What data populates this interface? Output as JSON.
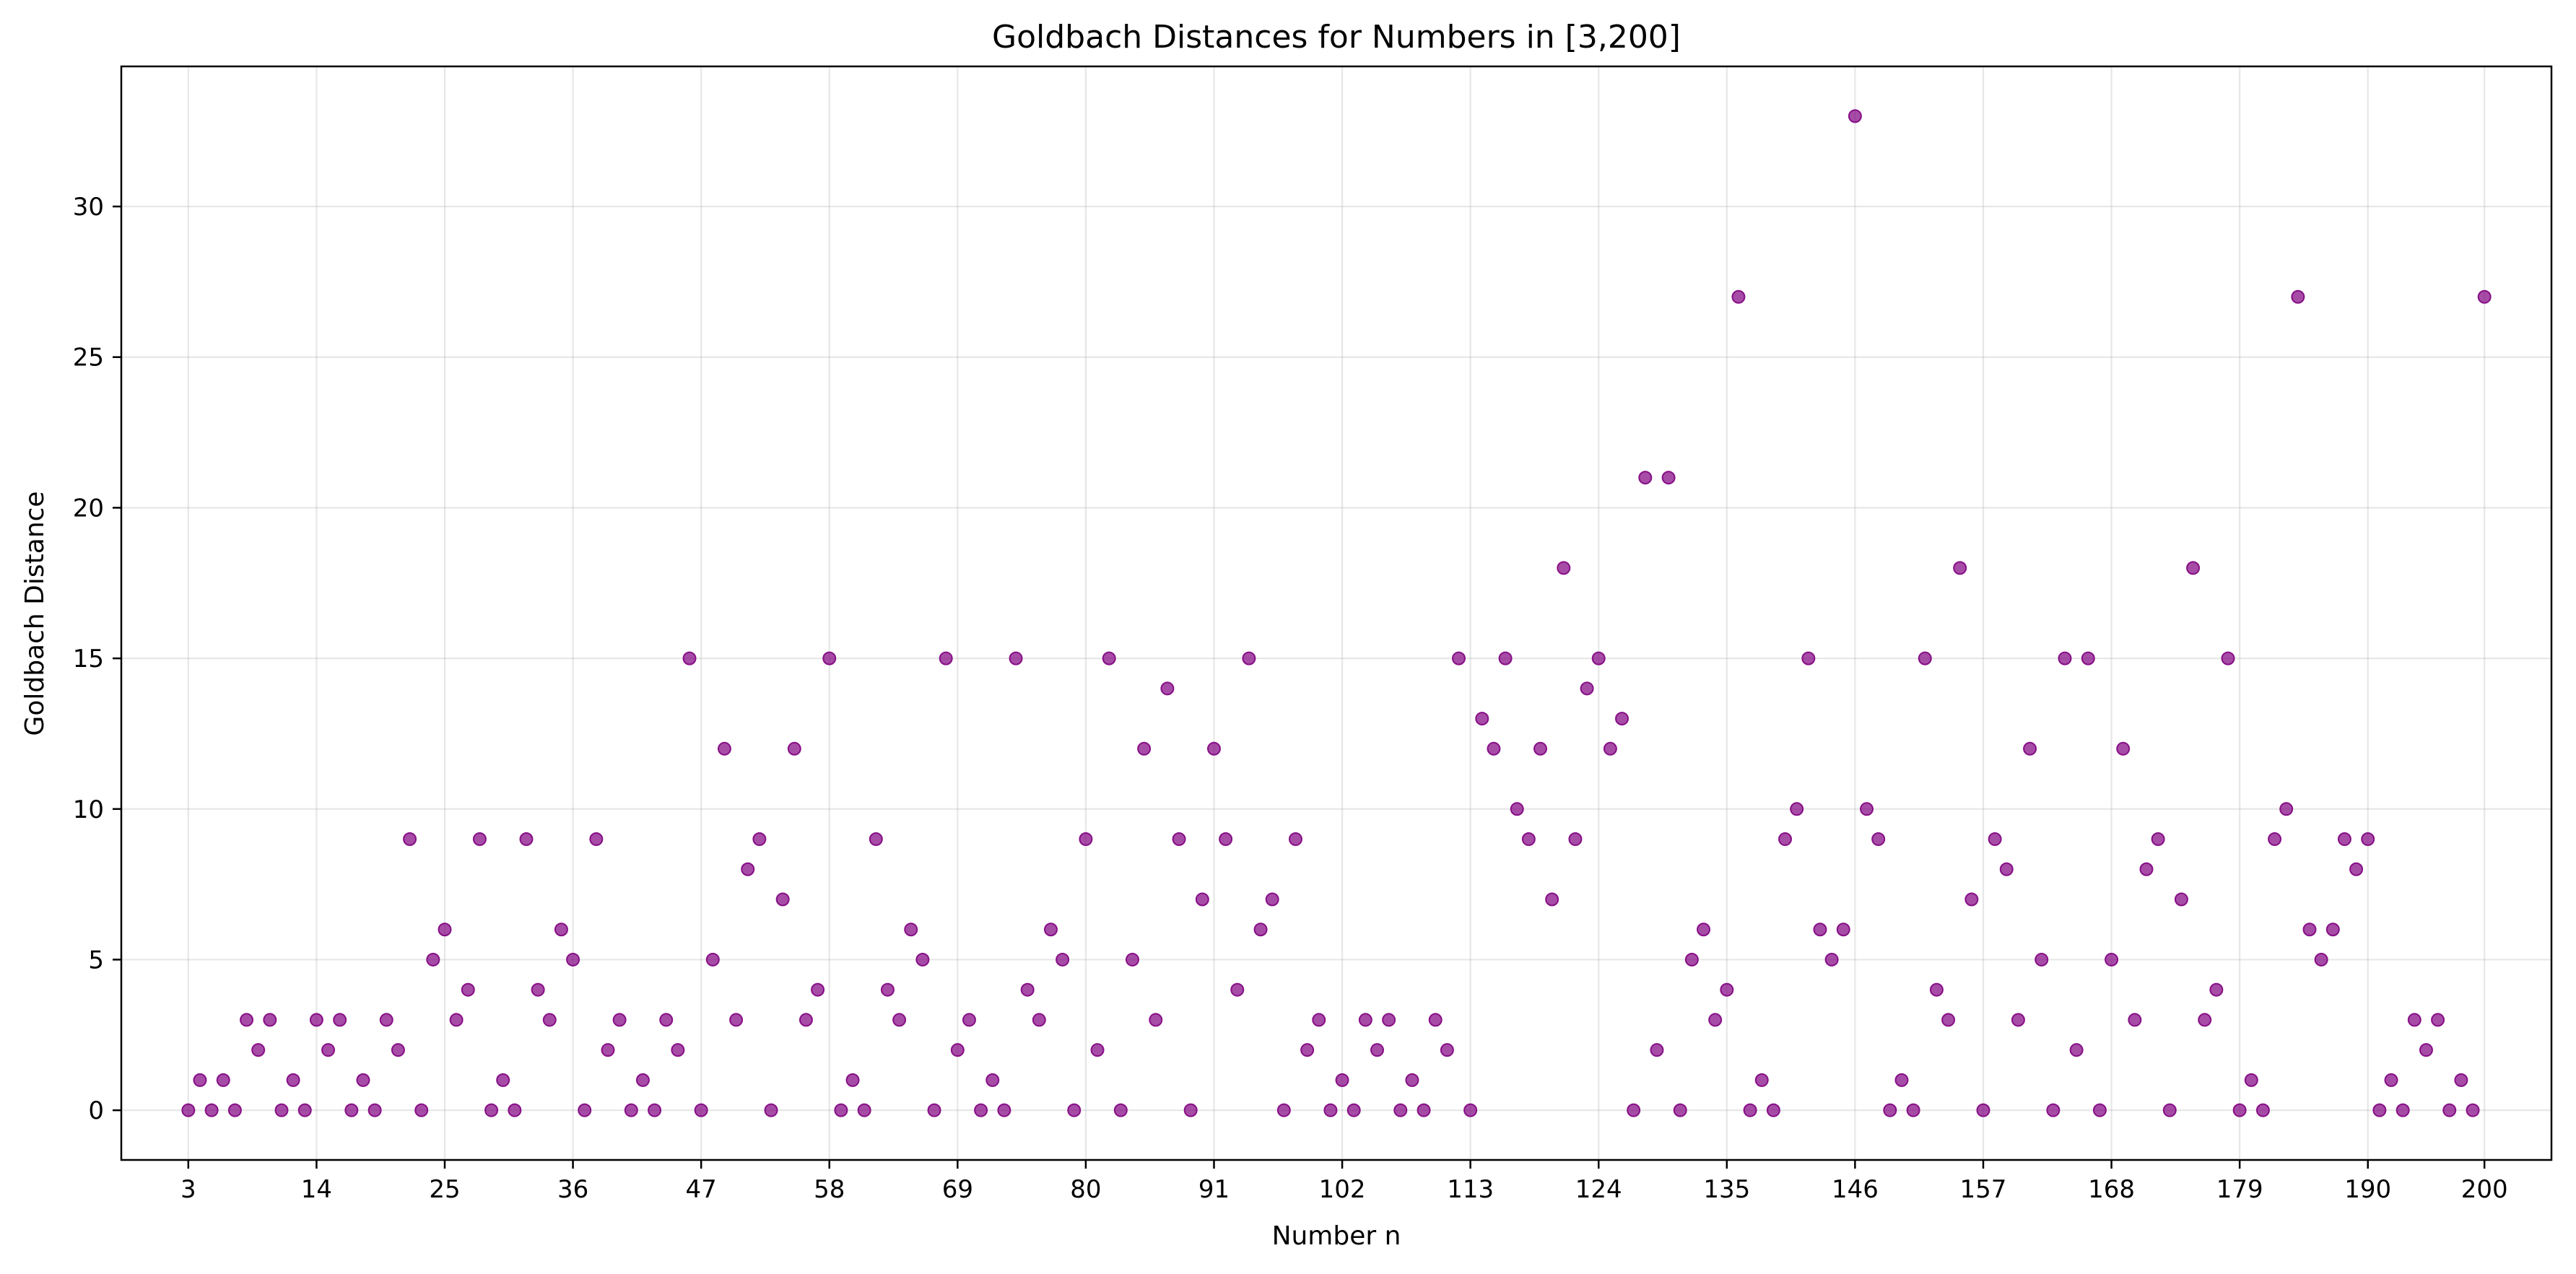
{
  "chart_data": {
    "type": "scatter",
    "title": "Goldbach Distances for Numbers in [3,200]",
    "xlabel": "Number n",
    "ylabel": "Goldbach Distance",
    "xlim": [
      -2.75,
      205.75
    ],
    "ylim": [
      -1.65,
      34.65
    ],
    "xticks": [
      3,
      14,
      25,
      36,
      47,
      58,
      69,
      80,
      91,
      102,
      113,
      124,
      135,
      146,
      157,
      168,
      179,
      190,
      200
    ],
    "yticks": [
      0,
      5,
      10,
      15,
      20,
      25,
      30
    ],
    "grid": true,
    "point_color": "#800080",
    "x_start": 3,
    "x_end": 200,
    "y": [
      0,
      1,
      0,
      1,
      0,
      3,
      2,
      3,
      0,
      1,
      0,
      3,
      2,
      3,
      0,
      1,
      0,
      3,
      2,
      9,
      0,
      5,
      6,
      3,
      4,
      9,
      0,
      1,
      0,
      9,
      4,
      3,
      6,
      5,
      0,
      9,
      2,
      3,
      0,
      1,
      0,
      3,
      2,
      15,
      0,
      5,
      12,
      3,
      8,
      9,
      0,
      7,
      12,
      3,
      4,
      15,
      0,
      1,
      0,
      9,
      4,
      3,
      6,
      5,
      0,
      15,
      2,
      3,
      0,
      1,
      0,
      15,
      4,
      3,
      6,
      5,
      0,
      9,
      2,
      15,
      0,
      5,
      12,
      3,
      14,
      9,
      0,
      7,
      12,
      9,
      4,
      15,
      6,
      7,
      0,
      9,
      2,
      3,
      0,
      1,
      0,
      3,
      2,
      3,
      0,
      1,
      0,
      3,
      2,
      15,
      0,
      13,
      12,
      15,
      10,
      9,
      12,
      7,
      18,
      9,
      14,
      15,
      12,
      13,
      0,
      21,
      2,
      21,
      0,
      5,
      6,
      3,
      4,
      27,
      0,
      1,
      0,
      9,
      10,
      15,
      6,
      5,
      6,
      33,
      10,
      9,
      0,
      1,
      0,
      15,
      4,
      3,
      18,
      7,
      0,
      9,
      8,
      3,
      12,
      5,
      0,
      15,
      2,
      15,
      0,
      5,
      12,
      3,
      8,
      9,
      0,
      7,
      18,
      3,
      4,
      15,
      0,
      1,
      0,
      9,
      10,
      27,
      6,
      5,
      6,
      9,
      8,
      9,
      0,
      1,
      0,
      3,
      2,
      3,
      0,
      1,
      0,
      27
    ]
  }
}
